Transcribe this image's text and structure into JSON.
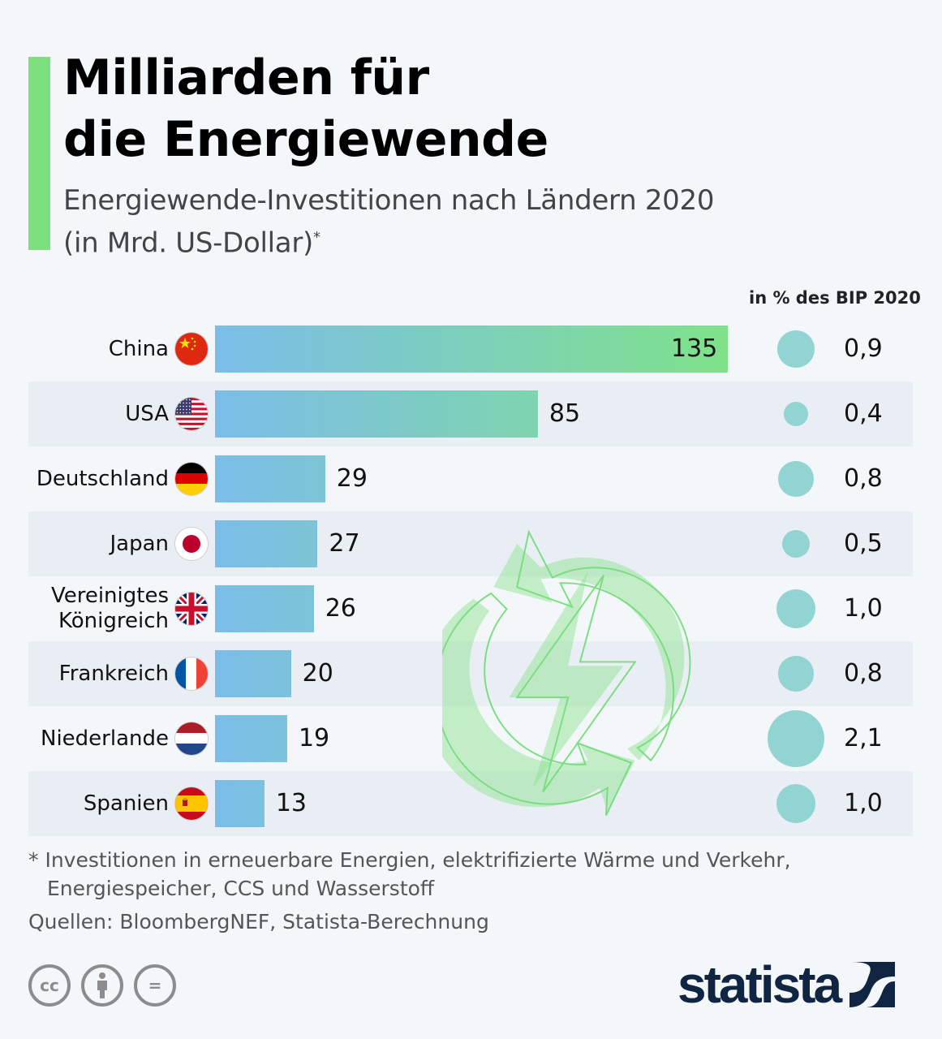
{
  "header": {
    "title_line1": "Milliarden für",
    "title_line2": "die Energiewende",
    "subtitle_line1": "Energiewende-Investitionen nach Ländern 2020",
    "subtitle_line2": "(in Mrd. US-Dollar)",
    "subtitle_marker": "*"
  },
  "colors": {
    "accent": "#7de07f",
    "bar_start": "#7bbde8",
    "bar_end": "#7fe28a",
    "dot": "#92d4d2",
    "row_alt": "#e9eef5",
    "logo": "#0f2541"
  },
  "chart_data": {
    "type": "bar",
    "orientation": "horizontal",
    "title": "Milliarden für die Energiewende",
    "subtitle": "Energiewende-Investitionen nach Ländern 2020 (in Mrd. US-Dollar)*",
    "categories": [
      "China",
      "USA",
      "Deutschland",
      "Japan",
      "Vereinigtes Königreich",
      "Frankreich",
      "Niederlande",
      "Spanien"
    ],
    "category_labels": [
      "China",
      "USA",
      "Deutschland",
      "Japan",
      "Vereinigtes\nKönigreich",
      "Frankreich",
      "Niederlande",
      "Spanien"
    ],
    "flags": [
      "china-flag",
      "usa-flag",
      "germany-flag",
      "japan-flag",
      "uk-flag",
      "france-flag",
      "netherlands-flag",
      "spain-flag"
    ],
    "values": [
      135,
      85,
      29,
      27,
      26,
      20,
      19,
      13
    ],
    "value_labels": [
      "135",
      "85",
      "29",
      "27",
      "26",
      "20",
      "19",
      "13"
    ],
    "xlim": [
      0,
      135
    ],
    "xlabel": "",
    "ylabel": "",
    "grid": false,
    "secondary": {
      "header": "in % des BIP 2020",
      "type": "bubble",
      "values": [
        0.9,
        0.4,
        0.8,
        0.5,
        1.0,
        0.8,
        2.1,
        1.0
      ],
      "value_labels": [
        "0,9",
        "0,4",
        "0,8",
        "0,5",
        "1,0",
        "0,8",
        "2,1",
        "1,0"
      ]
    }
  },
  "footer": {
    "footnote_line1": "* Investitionen in erneuerbare Energien, elektrifizierte Wärme und Verkehr,",
    "footnote_line2": "Energiespeicher, CCS und Wasserstoff",
    "source": "Quellen: BloombergNEF, Statista-Berechnung",
    "license_icons": [
      "cc-icon",
      "attribution-icon",
      "no-derivatives-icon"
    ],
    "cc_label": "cc",
    "nd_label": "=",
    "logo_text": "statista"
  }
}
